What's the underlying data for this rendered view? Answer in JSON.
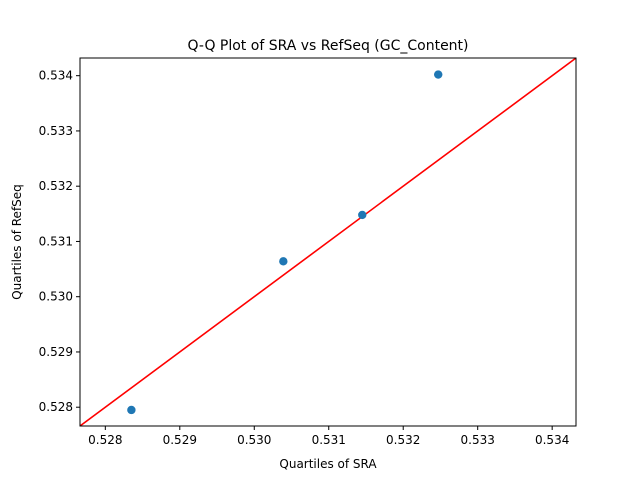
{
  "chart_data": {
    "type": "scatter",
    "title": "Q-Q Plot of SRA vs RefSeq (GC_Content)",
    "xlabel": "Quartiles of SRA",
    "ylabel": "Quartiles of RefSeq",
    "xlim": [
      0.52766,
      0.53432
    ],
    "ylim": [
      0.52766,
      0.53432
    ],
    "xticks": [
      "0.528",
      "0.529",
      "0.530",
      "0.531",
      "0.532",
      "0.533",
      "0.534"
    ],
    "yticks": [
      "0.528",
      "0.529",
      "0.530",
      "0.531",
      "0.532",
      "0.533",
      "0.534"
    ],
    "grid": false,
    "series": [
      {
        "type": "scatter",
        "color": "#1f77b4",
        "points": [
          {
            "x": 0.52835,
            "y": 0.52795
          },
          {
            "x": 0.53039,
            "y": 0.53064
          },
          {
            "x": 0.53145,
            "y": 0.53148
          },
          {
            "x": 0.53247,
            "y": 0.53402
          }
        ]
      },
      {
        "type": "line",
        "color": "#ff0000",
        "points": [
          {
            "x": 0.52766,
            "y": 0.52766
          },
          {
            "x": 0.53432,
            "y": 0.53432
          }
        ]
      }
    ]
  }
}
